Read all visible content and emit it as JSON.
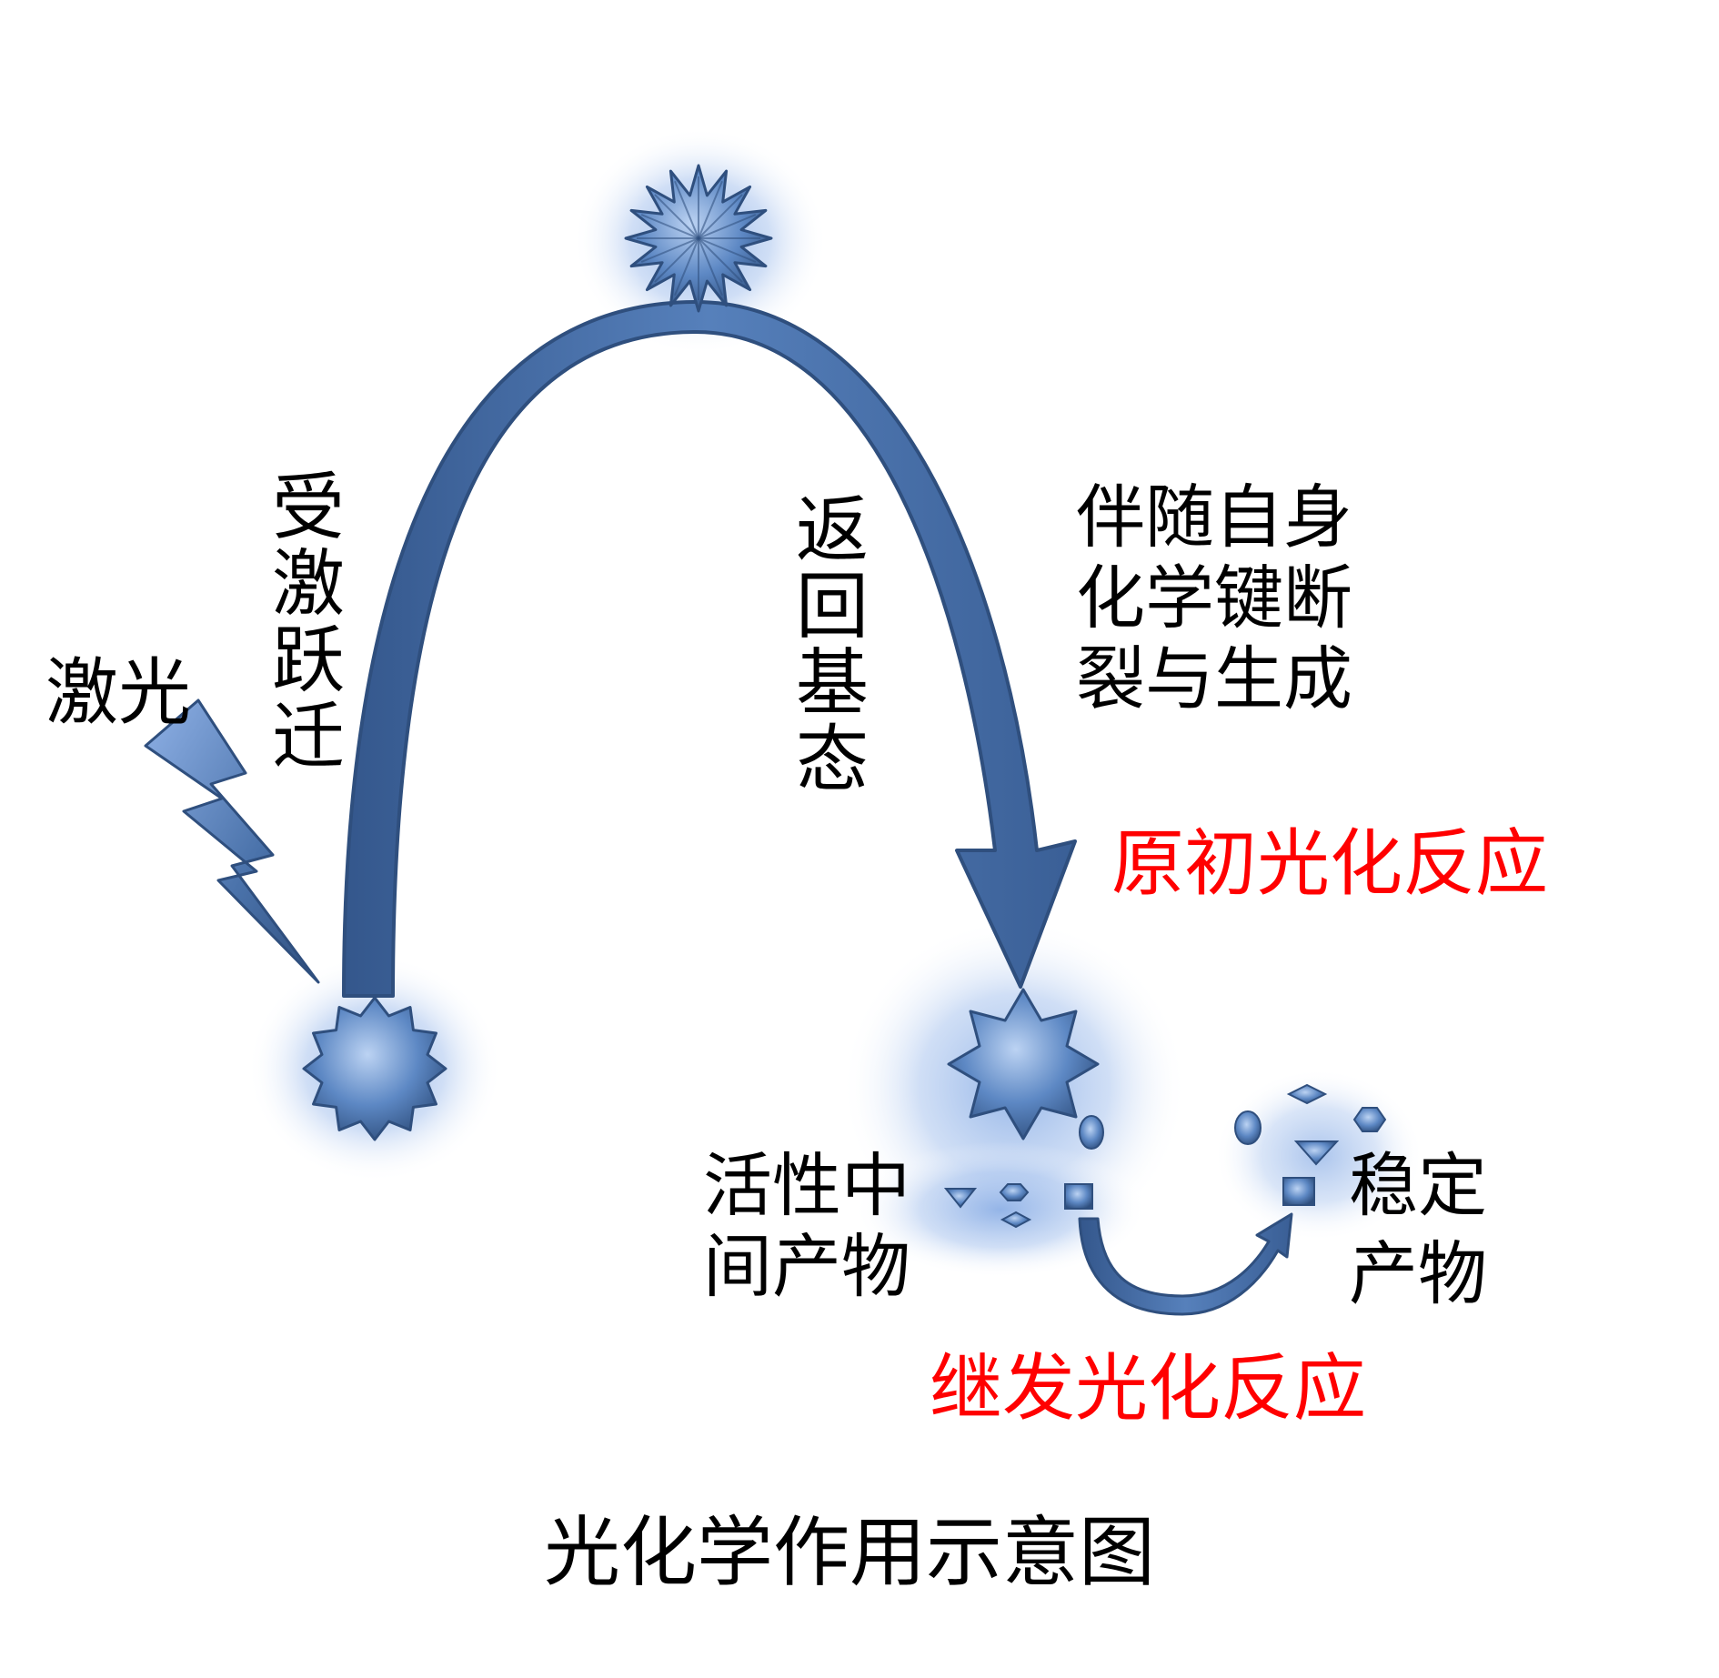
{
  "labels": {
    "laser": "激光",
    "excited_transition": "受激跃迁",
    "return_ground": "返回基态",
    "bond_change": [
      "伴随自身",
      "化学键断",
      "裂与生成"
    ],
    "primary_reaction": "原初光化反应",
    "active_intermediate": [
      "活性中",
      "间产物"
    ],
    "stable_product": [
      "稳定",
      "产物"
    ],
    "secondary_reaction": "继发光化反应",
    "title": "光化学作用示意图"
  },
  "colors": {
    "arrow": "#4a72aa",
    "arrow_dark": "#2f4f7e",
    "shape_light": "#9cbbe6",
    "glow": "#8fb1e6",
    "text": "#000000",
    "highlight": "#ff0000"
  }
}
